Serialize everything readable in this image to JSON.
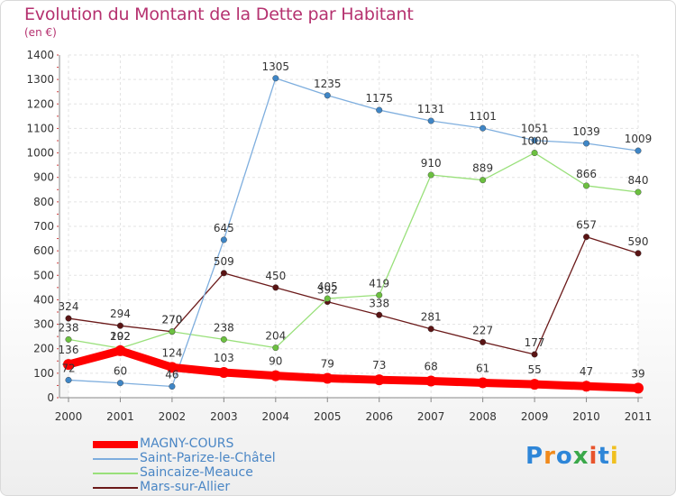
{
  "title": "Evolution du Montant de la Dette par Habitant",
  "unit_label": "(en €)",
  "logo": {
    "text": "Proxiti",
    "colors": [
      "#2e86d8",
      "#f08a1c",
      "#2e86d8",
      "#3aa84a",
      "#e8542c",
      "#2e86d8",
      "#f0c020"
    ]
  },
  "chart_data": {
    "type": "line",
    "x": [
      "2000",
      "2001",
      "2002",
      "2003",
      "2004",
      "2005",
      "2006",
      "2007",
      "2008",
      "2009",
      "2010",
      "2011"
    ],
    "ylim": [
      0,
      1400
    ],
    "yticks": [
      0,
      100,
      200,
      300,
      400,
      500,
      600,
      700,
      800,
      900,
      1000,
      1100,
      1200,
      1300,
      1400
    ],
    "grid": true,
    "legend_position": "bottom-left",
    "series": [
      {
        "name": "Mars-sur-Allier",
        "color": "#6b1a1a",
        "marker": "#5a1414",
        "values": [
          324,
          294,
          270,
          509,
          450,
          392,
          338,
          281,
          227,
          177,
          657,
          590
        ],
        "labels": [
          "324",
          "294",
          "270",
          "509",
          "450",
          "392",
          "338",
          "281",
          "227",
          "177",
          "657",
          "590"
        ]
      },
      {
        "name": "Saincaize-Meauce",
        "color": "#99e07a",
        "marker": "#6cc040",
        "values": [
          238,
          202,
          270,
          238,
          204,
          405,
          419,
          910,
          889,
          1000,
          866,
          840
        ],
        "labels": [
          "238",
          "202",
          "270",
          "238",
          "204",
          "405",
          "419",
          "910",
          "889",
          "1000",
          "866",
          "840"
        ]
      },
      {
        "name": "Saint-Parize-le-Châtel",
        "color": "#7eaede",
        "marker": "#3f86c6",
        "values": [
          72,
          60,
          46,
          645,
          1305,
          1235,
          1175,
          1131,
          1101,
          1051,
          1039,
          1009
        ],
        "labels": [
          "72",
          "60",
          "46",
          "645",
          "1305",
          "1235",
          "1175",
          "1131",
          "1101",
          "1051",
          "1039",
          "1009"
        ]
      },
      {
        "name": "MAGNY-COURS",
        "color": "#ff0000",
        "marker": "#ff0000",
        "values": [
          136,
          192,
          124,
          103,
          90,
          79,
          73,
          68,
          61,
          55,
          47,
          39
        ],
        "labels": [
          "136",
          "192",
          "124",
          "103",
          "90",
          "79",
          "73",
          "68",
          "61",
          "55",
          "47",
          "39"
        ]
      }
    ],
    "legend": [
      "MAGNY-COURS",
      "Saint-Parize-le-Châtel",
      "Saincaize-Meauce",
      "Mars-sur-Allier"
    ]
  }
}
